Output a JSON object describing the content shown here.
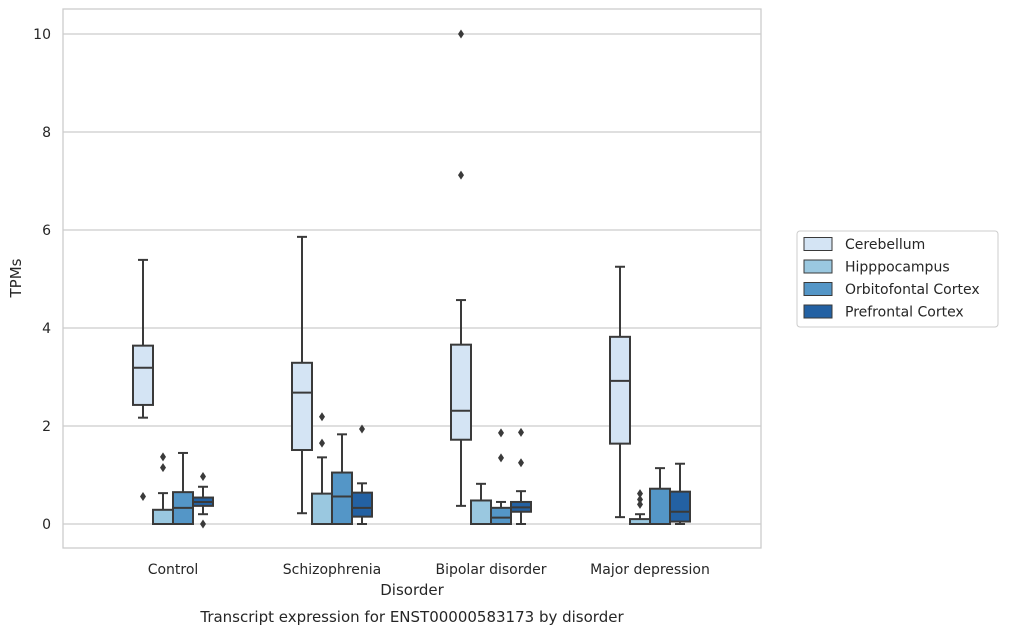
{
  "chart_data": {
    "type": "box",
    "title": "",
    "caption": "Transcript expression for ENST00000583173 by disorder",
    "xlabel": "Disorder",
    "ylabel": "TPMs",
    "ylim": [
      -0.5,
      10.5
    ],
    "yticks": [
      0,
      2,
      4,
      6,
      8,
      10
    ],
    "grid": "horizontal",
    "legend_placement": "right-center",
    "categories": [
      "Control",
      "Schizophrenia",
      "Bipolar disorder",
      "Major depression"
    ],
    "series": [
      {
        "name": "Cerebellum",
        "color": "#d4e4f4",
        "boxes": [
          {
            "whislo": 2.17,
            "q1": 2.43,
            "med": 3.19,
            "q3": 3.64,
            "whishi": 5.39,
            "fliers": [
              0.56
            ]
          },
          {
            "whislo": 0.22,
            "q1": 1.51,
            "med": 2.68,
            "q3": 3.29,
            "whishi": 5.86,
            "fliers": []
          },
          {
            "whislo": 0.37,
            "q1": 1.72,
            "med": 2.31,
            "q3": 3.66,
            "whishi": 4.57,
            "fliers": [
              7.12,
              10.0
            ]
          },
          {
            "whislo": 0.14,
            "q1": 1.64,
            "med": 2.92,
            "q3": 3.82,
            "whishi": 5.25,
            "fliers": []
          }
        ]
      },
      {
        "name": "Hipppocampus",
        "color": "#9ac8e0",
        "boxes": [
          {
            "whislo": 0.0,
            "q1": 0.0,
            "med": 0.0,
            "q3": 0.29,
            "whishi": 0.63,
            "fliers": [
              1.15,
              1.37
            ]
          },
          {
            "whislo": 0.0,
            "q1": 0.0,
            "med": 0.0,
            "q3": 0.62,
            "whishi": 1.36,
            "fliers": [
              1.65,
              2.19
            ]
          },
          {
            "whislo": 0.0,
            "q1": 0.0,
            "med": 0.0,
            "q3": 0.48,
            "whishi": 0.82,
            "fliers": []
          },
          {
            "whislo": 0.0,
            "q1": 0.0,
            "med": 0.0,
            "q3": 0.1,
            "whishi": 0.2,
            "fliers": [
              0.4,
              0.5,
              0.62
            ]
          }
        ]
      },
      {
        "name": "Orbitofontal Cortex",
        "color": "#5496c7",
        "boxes": [
          {
            "whislo": 0.0,
            "q1": 0.0,
            "med": 0.33,
            "q3": 0.65,
            "whishi": 1.45,
            "fliers": []
          },
          {
            "whislo": 0.0,
            "q1": 0.0,
            "med": 0.56,
            "q3": 1.05,
            "whishi": 1.83,
            "fliers": []
          },
          {
            "whislo": 0.0,
            "q1": 0.0,
            "med": 0.13,
            "q3": 0.33,
            "whishi": 0.45,
            "fliers": [
              1.35,
              1.86
            ]
          },
          {
            "whislo": 0.0,
            "q1": 0.0,
            "med": 0.0,
            "q3": 0.72,
            "whishi": 1.14,
            "fliers": []
          }
        ]
      },
      {
        "name": "Prefrontal Cortex",
        "color": "#2361a3",
        "boxes": [
          {
            "whislo": 0.2,
            "q1": 0.37,
            "med": 0.45,
            "q3": 0.54,
            "whishi": 0.76,
            "fliers": [
              0.0,
              0.97
            ]
          },
          {
            "whislo": 0.0,
            "q1": 0.15,
            "med": 0.33,
            "q3": 0.64,
            "whishi": 0.83,
            "fliers": [
              1.94
            ]
          },
          {
            "whislo": 0.0,
            "q1": 0.25,
            "med": 0.34,
            "q3": 0.45,
            "whishi": 0.67,
            "fliers": [
              1.25,
              1.87
            ]
          },
          {
            "whislo": 0.0,
            "q1": 0.05,
            "med": 0.25,
            "q3": 0.66,
            "whishi": 1.23,
            "fliers": []
          }
        ]
      }
    ]
  }
}
